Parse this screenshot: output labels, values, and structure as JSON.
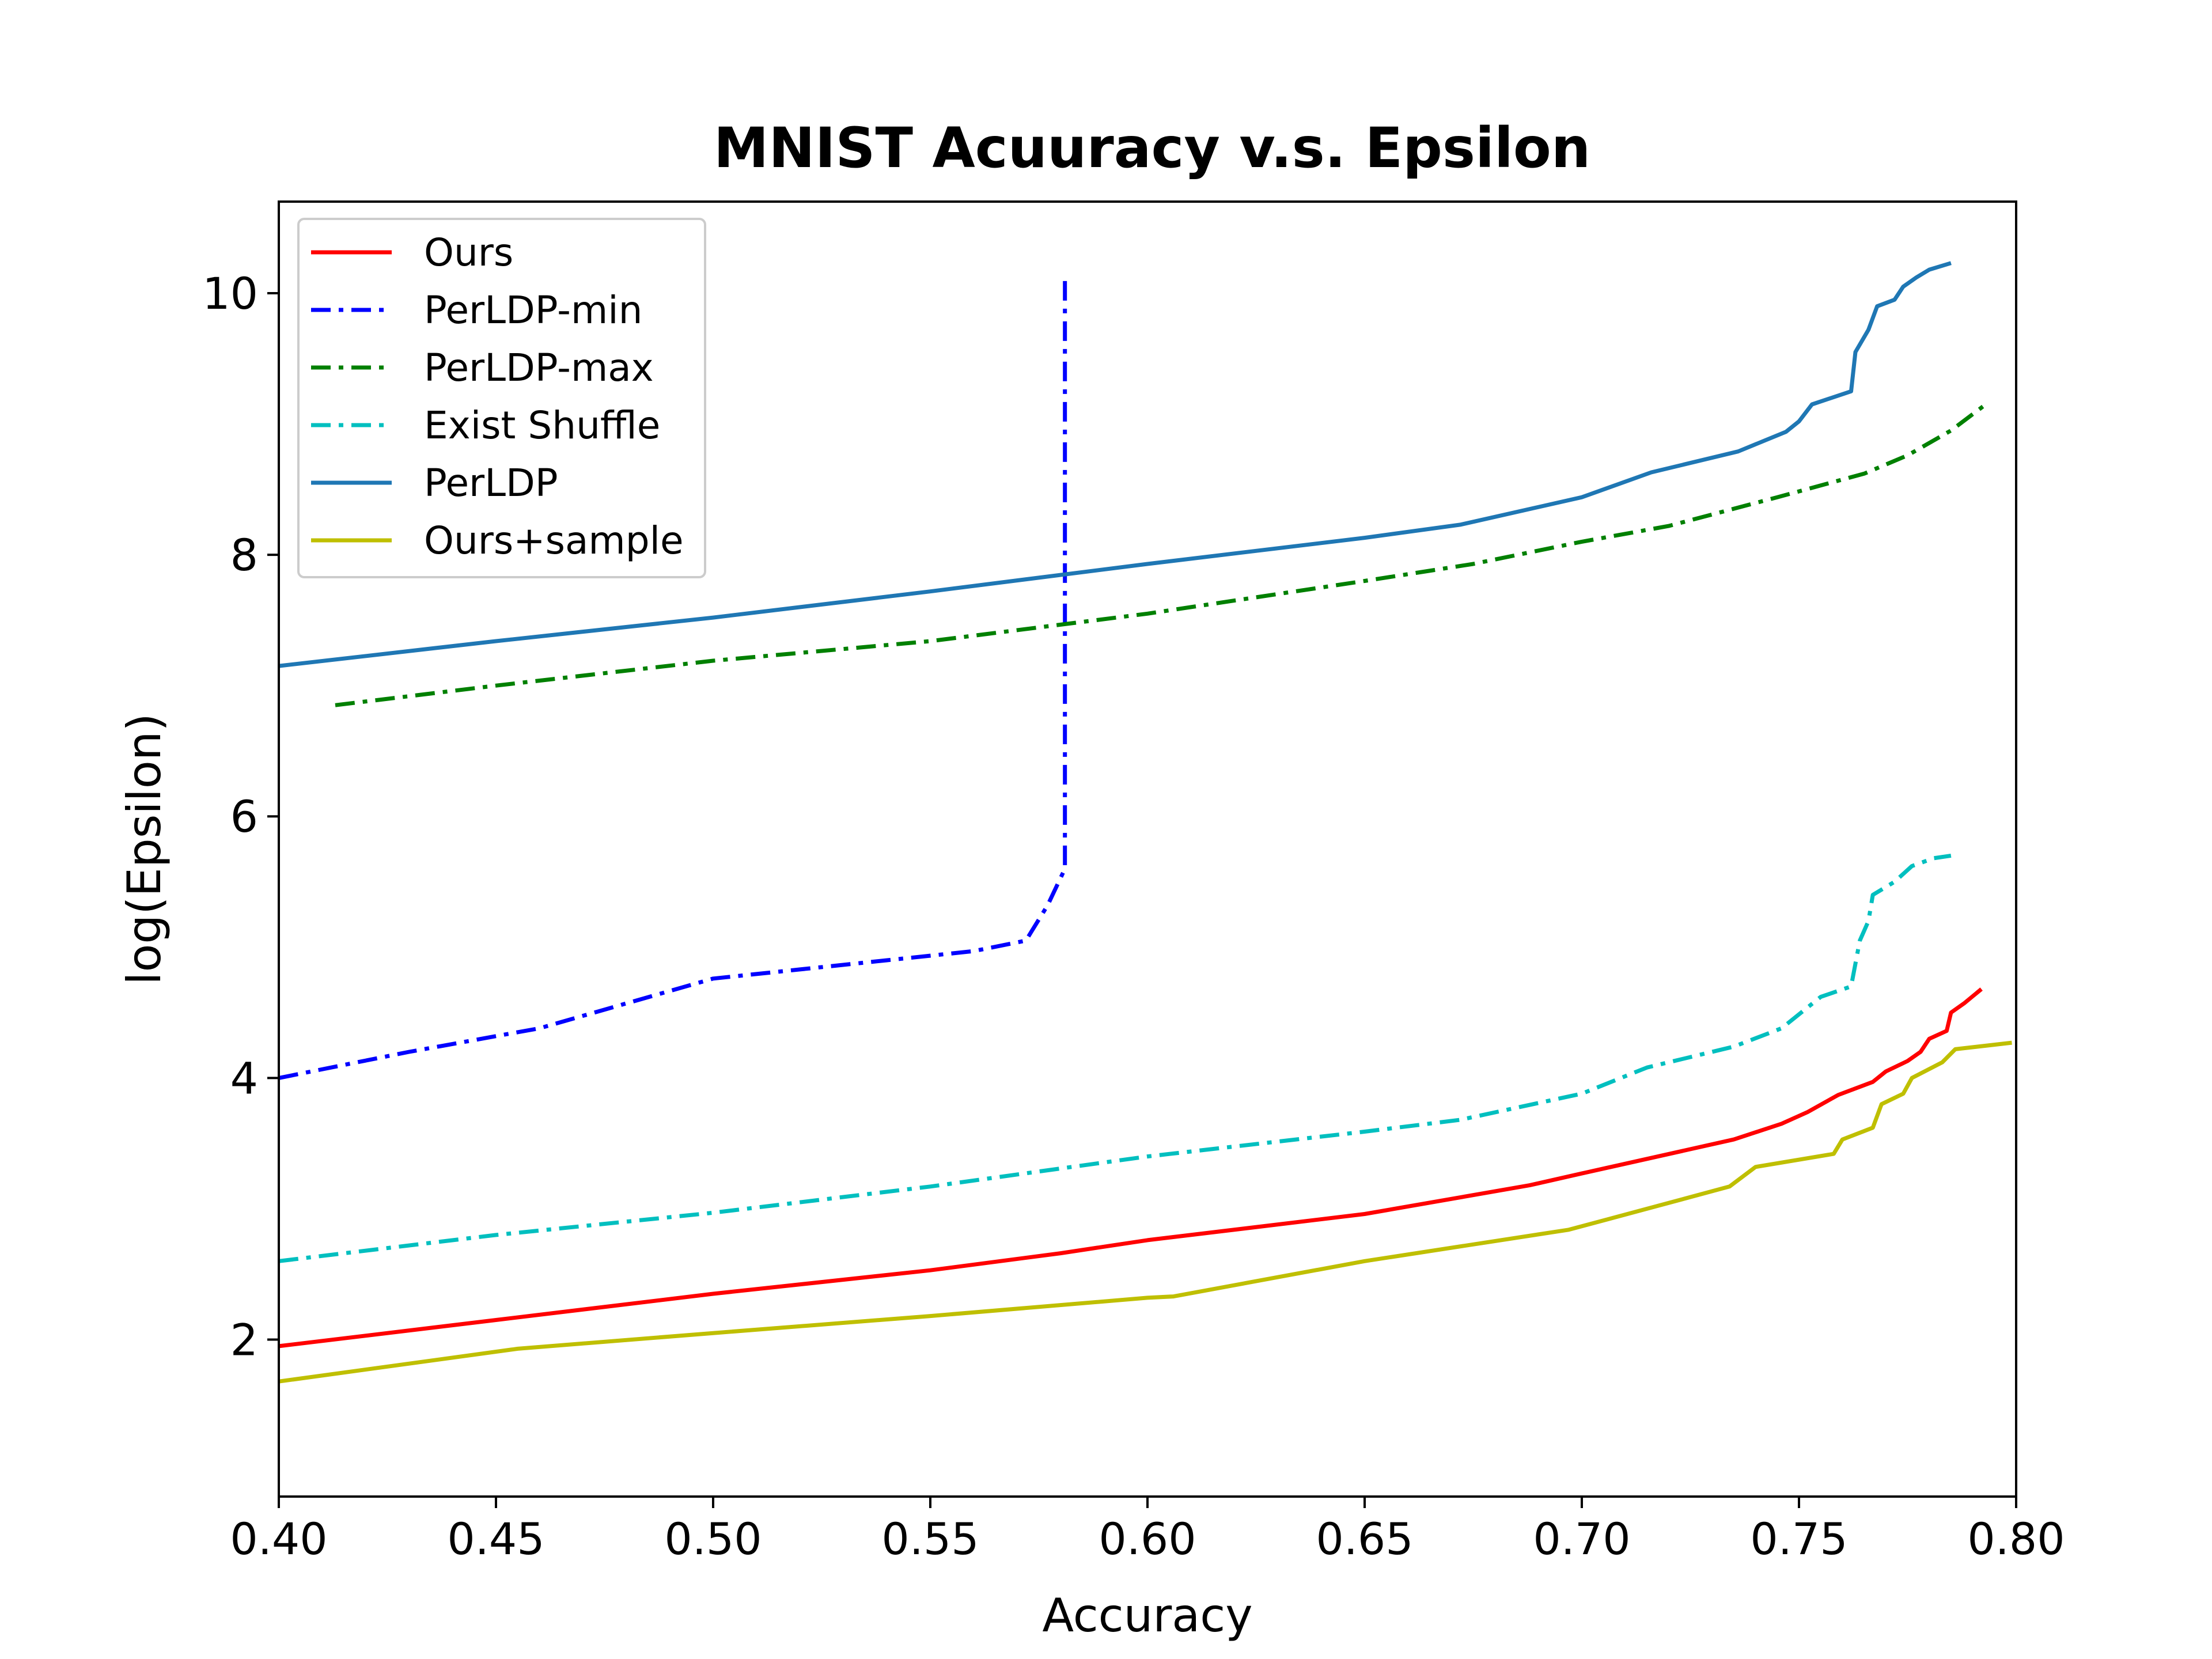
{
  "chart_data": {
    "type": "line",
    "title": "MNIST Acuuracy v.s. Epsilon",
    "xlabel": "Accuracy",
    "ylabel": "log(Epsilon)",
    "xlim": [
      0.4,
      0.8
    ],
    "ylim": [
      0.8,
      10.7
    ],
    "x_ticks": [
      "0.40",
      "0.45",
      "0.50",
      "0.55",
      "0.60",
      "0.65",
      "0.70",
      "0.75",
      "0.80"
    ],
    "y_ticks": [
      "2",
      "4",
      "6",
      "8",
      "10"
    ],
    "grid": false,
    "legend_position": "top-left",
    "series": [
      {
        "name": "Ours",
        "color": "#ff0000",
        "style": "solid",
        "points": [
          [
            0.4,
            1.95
          ],
          [
            0.45,
            2.15
          ],
          [
            0.5,
            2.35
          ],
          [
            0.55,
            2.53
          ],
          [
            0.58,
            2.66
          ],
          [
            0.6,
            2.76
          ],
          [
            0.65,
            2.96
          ],
          [
            0.688,
            3.18
          ],
          [
            0.7,
            3.27
          ],
          [
            0.735,
            3.53
          ],
          [
            0.746,
            3.65
          ],
          [
            0.752,
            3.74
          ],
          [
            0.759,
            3.87
          ],
          [
            0.767,
            3.97
          ],
          [
            0.77,
            4.05
          ],
          [
            0.775,
            4.13
          ],
          [
            0.778,
            4.2
          ],
          [
            0.78,
            4.3
          ],
          [
            0.784,
            4.36
          ],
          [
            0.785,
            4.5
          ],
          [
            0.788,
            4.57
          ],
          [
            0.792,
            4.68
          ]
        ]
      },
      {
        "name": "PerLDP-min",
        "color": "#0000ff",
        "style": "dashdot",
        "points": [
          [
            0.4,
            4.0
          ],
          [
            0.43,
            4.2
          ],
          [
            0.46,
            4.38
          ],
          [
            0.48,
            4.57
          ],
          [
            0.5,
            4.76
          ],
          [
            0.52,
            4.83
          ],
          [
            0.54,
            4.9
          ],
          [
            0.56,
            4.97
          ],
          [
            0.572,
            5.05
          ],
          [
            0.577,
            5.32
          ],
          [
            0.581,
            5.6
          ],
          [
            0.581,
            6.5
          ],
          [
            0.581,
            8.0
          ],
          [
            0.581,
            10.12
          ]
        ]
      },
      {
        "name": "PerLDP-max",
        "color": "#008000",
        "style": "dashdot",
        "points": [
          [
            0.413,
            6.85
          ],
          [
            0.45,
            7.0
          ],
          [
            0.5,
            7.19
          ],
          [
            0.55,
            7.34
          ],
          [
            0.6,
            7.55
          ],
          [
            0.65,
            7.8
          ],
          [
            0.675,
            7.93
          ],
          [
            0.7,
            8.1
          ],
          [
            0.72,
            8.22
          ],
          [
            0.745,
            8.44
          ],
          [
            0.765,
            8.62
          ],
          [
            0.775,
            8.76
          ],
          [
            0.785,
            8.95
          ],
          [
            0.793,
            9.15
          ]
        ]
      },
      {
        "name": "Exist Shuffle",
        "color": "#00bfbf",
        "style": "dashdot",
        "points": [
          [
            0.4,
            2.6
          ],
          [
            0.45,
            2.8
          ],
          [
            0.5,
            2.97
          ],
          [
            0.55,
            3.17
          ],
          [
            0.6,
            3.4
          ],
          [
            0.65,
            3.59
          ],
          [
            0.672,
            3.68
          ],
          [
            0.7,
            3.88
          ],
          [
            0.715,
            4.08
          ],
          [
            0.735,
            4.24
          ],
          [
            0.746,
            4.38
          ],
          [
            0.755,
            4.62
          ],
          [
            0.762,
            4.7
          ],
          [
            0.764,
            5.05
          ],
          [
            0.766,
            5.2
          ],
          [
            0.767,
            5.4
          ],
          [
            0.772,
            5.5
          ],
          [
            0.776,
            5.62
          ],
          [
            0.781,
            5.68
          ],
          [
            0.785,
            5.7
          ]
        ]
      },
      {
        "name": "PerLDP",
        "color": "#1f77b4",
        "style": "solid",
        "points": [
          [
            0.4,
            7.15
          ],
          [
            0.45,
            7.34
          ],
          [
            0.5,
            7.52
          ],
          [
            0.55,
            7.72
          ],
          [
            0.6,
            7.93
          ],
          [
            0.65,
            8.13
          ],
          [
            0.672,
            8.23
          ],
          [
            0.7,
            8.44
          ],
          [
            0.716,
            8.63
          ],
          [
            0.736,
            8.79
          ],
          [
            0.747,
            8.94
          ],
          [
            0.75,
            9.02
          ],
          [
            0.753,
            9.15
          ],
          [
            0.762,
            9.25
          ],
          [
            0.763,
            9.55
          ],
          [
            0.766,
            9.72
          ],
          [
            0.768,
            9.9
          ],
          [
            0.772,
            9.95
          ],
          [
            0.774,
            10.05
          ],
          [
            0.777,
            10.12
          ],
          [
            0.78,
            10.18
          ],
          [
            0.785,
            10.23
          ]
        ]
      },
      {
        "name": "Ours+sample",
        "color": "#bfbf00",
        "style": "solid",
        "points": [
          [
            0.4,
            1.68
          ],
          [
            0.455,
            1.93
          ],
          [
            0.5,
            2.05
          ],
          [
            0.55,
            2.18
          ],
          [
            0.6,
            2.32
          ],
          [
            0.606,
            2.33
          ],
          [
            0.65,
            2.6
          ],
          [
            0.697,
            2.84
          ],
          [
            0.715,
            3.0
          ],
          [
            0.734,
            3.17
          ],
          [
            0.74,
            3.32
          ],
          [
            0.758,
            3.42
          ],
          [
            0.76,
            3.53
          ],
          [
            0.767,
            3.62
          ],
          [
            0.769,
            3.8
          ],
          [
            0.774,
            3.88
          ],
          [
            0.776,
            4.0
          ],
          [
            0.783,
            4.12
          ],
          [
            0.786,
            4.22
          ],
          [
            0.799,
            4.27
          ]
        ]
      }
    ]
  }
}
